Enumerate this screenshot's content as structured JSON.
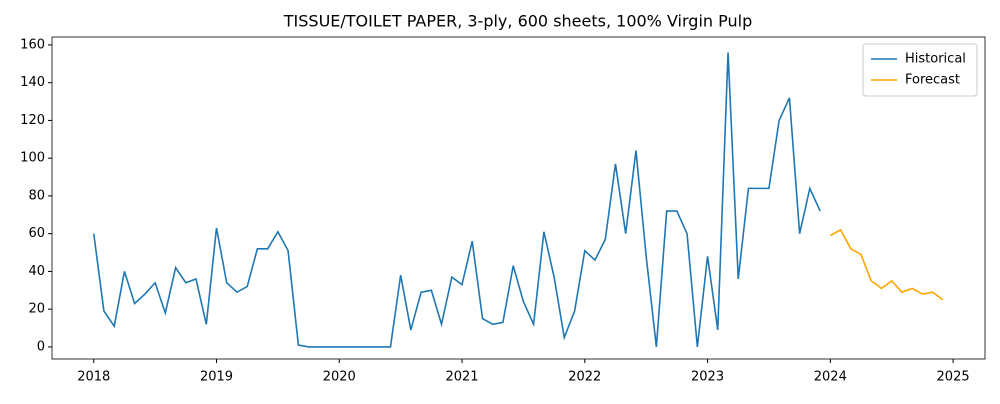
{
  "chart_data": {
    "type": "line",
    "title": "TISSUE/TOILET PAPER, 3-ply, 600 sheets, 100% Virgin Pulp",
    "series": [
      {
        "name": "Historical",
        "color": "#1f77b4",
        "x": [
          2018,
          2018.083,
          2018.167,
          2018.25,
          2018.333,
          2018.417,
          2018.5,
          2018.583,
          2018.667,
          2018.75,
          2018.833,
          2018.917,
          2019,
          2019.083,
          2019.167,
          2019.25,
          2019.333,
          2019.417,
          2019.5,
          2019.583,
          2019.667,
          2019.75,
          2019.833,
          2019.917,
          2020,
          2020.083,
          2020.167,
          2020.25,
          2020.333,
          2020.417,
          2020.5,
          2020.583,
          2020.667,
          2020.75,
          2020.833,
          2020.917,
          2021,
          2021.083,
          2021.167,
          2021.25,
          2021.333,
          2021.417,
          2021.5,
          2021.583,
          2021.667,
          2021.75,
          2021.833,
          2021.917,
          2022,
          2022.083,
          2022.167,
          2022.25,
          2022.333,
          2022.417,
          2022.5,
          2022.583,
          2022.667,
          2022.75,
          2022.833,
          2022.917,
          2023,
          2023.083,
          2023.167,
          2023.25,
          2023.333,
          2023.417,
          2023.5,
          2023.583,
          2023.667,
          2023.75,
          2023.833,
          2023.917
        ],
        "values": [
          60,
          19,
          11,
          40,
          23,
          28,
          34,
          18,
          42,
          34,
          36,
          12,
          63,
          34,
          29,
          32,
          52,
          52,
          61,
          51,
          1,
          0,
          0,
          0,
          0,
          0,
          0,
          0,
          0,
          0,
          38,
          9,
          29,
          30,
          12,
          37,
          33,
          56,
          15,
          12,
          13,
          43,
          24,
          12,
          61,
          37,
          5,
          19,
          51,
          46,
          57,
          97,
          60,
          104,
          48,
          0,
          72,
          72,
          60,
          0,
          48,
          9,
          156,
          36,
          84,
          84,
          84,
          120,
          132,
          60,
          84,
          72
        ]
      },
      {
        "name": "Forecast",
        "color": "#ffa500",
        "x": [
          2024,
          2024.083,
          2024.167,
          2024.25,
          2024.333,
          2024.417,
          2024.5,
          2024.583,
          2024.667,
          2024.75,
          2024.833,
          2024.917
        ],
        "values": [
          59,
          62,
          52,
          49,
          35,
          31,
          35,
          29,
          31,
          28,
          29,
          25
        ]
      }
    ],
    "xlim": [
      2017.66,
      2025.26
    ],
    "xticks": [
      2018,
      2019,
      2020,
      2021,
      2022,
      2023,
      2024,
      2025
    ],
    "ylim": [
      -6.4,
      164.2
    ],
    "yticks": [
      0,
      20,
      40,
      60,
      80,
      100,
      120,
      140,
      160
    ],
    "legend": "upper right"
  }
}
